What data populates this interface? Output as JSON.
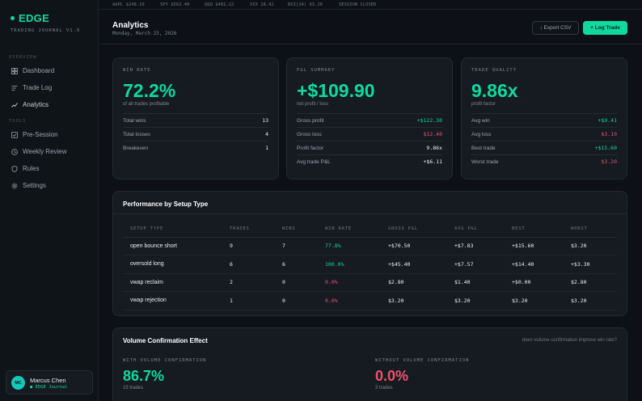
{
  "sidebar": {
    "brand": "EDGE",
    "brand_sub": "TRADING JOURNAL V1.0",
    "sections": {
      "overview": "OVERVIEW",
      "tools": "TOOLS"
    },
    "items": [
      {
        "label": "Dashboard",
        "icon": "dashboard-icon"
      },
      {
        "label": "Trade Log",
        "icon": "list-icon"
      },
      {
        "label": "Analytics",
        "icon": "chart-icon"
      },
      {
        "label": "Pre-Session",
        "icon": "checkbox-icon"
      },
      {
        "label": "Weekly Review",
        "icon": "clock-icon"
      },
      {
        "label": "Rules",
        "icon": "shield-icon"
      },
      {
        "label": "Settings",
        "icon": "gear-icon"
      }
    ],
    "user": {
      "initials": "MC",
      "name": "Marcus Chen",
      "sub": "● EDGE Journal"
    }
  },
  "ticker": [
    "AAPL $248.19",
    "SPY $562.40",
    "QQQ $481.22",
    "VIX 18.42",
    "RSI(14) 63.26",
    "SESSION CLOSED"
  ],
  "header": {
    "title": "Analytics",
    "date": "Monday, March 23, 2026",
    "export_label": "↓ Export CSV",
    "log_label": "+ Log Trade"
  },
  "cards": [
    {
      "label": "WIN RATE",
      "value": "72.2%",
      "sub": "of all trades profitable",
      "rows": [
        {
          "k": "Total wins",
          "v": "13"
        },
        {
          "k": "Total losses",
          "v": "4"
        },
        {
          "k": "Breakeven",
          "v": "1"
        }
      ]
    },
    {
      "label": "P&L SUMMARY",
      "value": "+$109.90",
      "sub": "net profit / loss",
      "rows": [
        {
          "k": "Gross profit",
          "v": "+$122.30"
        },
        {
          "k": "Gross loss",
          "v": "$12.40"
        },
        {
          "k": "Profit factor",
          "v": "9.86x"
        },
        {
          "k": "Avg trade P&L",
          "v": "+$6.11"
        }
      ]
    },
    {
      "label": "TRADE QUALITY",
      "value": "9.86x",
      "sub": "profit factor",
      "rows": [
        {
          "k": "Avg win",
          "v": "+$9.41"
        },
        {
          "k": "Avg loss",
          "v": "$3.10"
        },
        {
          "k": "Best trade",
          "v": "+$15.60"
        },
        {
          "k": "Worst trade",
          "v": "$3.20"
        }
      ]
    }
  ],
  "setup_table": {
    "title": "Performance by Setup Type",
    "columns": [
      "SETUP TYPE",
      "TRADES",
      "WINS",
      "WIN RATE",
      "GROSS P&L",
      "AVG P&L",
      "BEST",
      "WORST"
    ],
    "rows": [
      [
        "open bounce short",
        "9",
        "7",
        "77.8%",
        "+$70.50",
        "+$7.83",
        "+$15.60",
        "$3.20"
      ],
      [
        "oversold long",
        "6",
        "6",
        "100.0%",
        "+$45.40",
        "+$7.57",
        "+$14.40",
        "+$3.30"
      ],
      [
        "vwap reclaim",
        "2",
        "0",
        "0.0%",
        "$2.80",
        "$1.40",
        "+$0.00",
        "$2.80"
      ],
      [
        "vwap rejection",
        "1",
        "0",
        "0.0%",
        "$3.20",
        "$3.20",
        "$3.20",
        "$3.20"
      ]
    ]
  },
  "volume": {
    "title": "Volume Confirmation Effect",
    "hint": "does volume confirmation improve win rate?",
    "with_label": "WITH VOLUME CONFIRMATION",
    "with_value": "86.7%",
    "with_sub": "15 trades",
    "without_label": "WITHOUT VOLUME CONFIRMATION",
    "without_value": "0.0%",
    "without_sub": "3 trades"
  },
  "colors": {
    "accent": "#10d9a0",
    "negative": "#f0506e",
    "background": "#0d1117",
    "card": "#161b22"
  }
}
